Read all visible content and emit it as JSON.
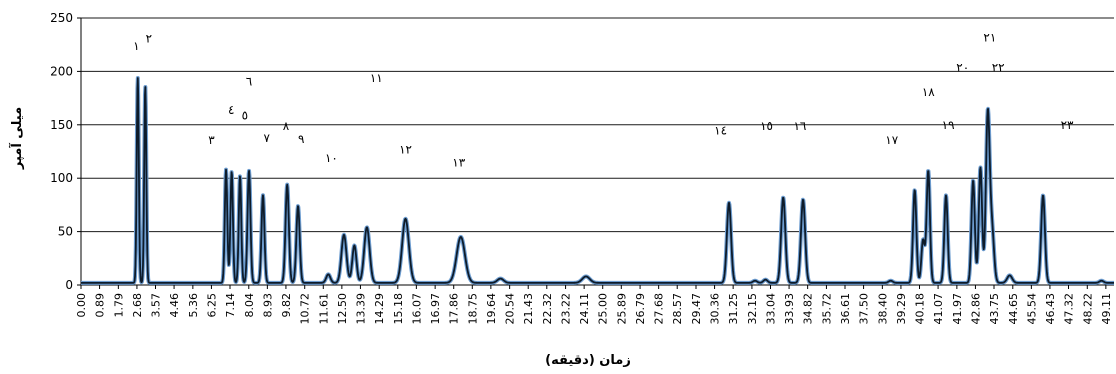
{
  "chart_data": {
    "type": "line",
    "title": "",
    "xlabel": "زمان (دقیقه)",
    "ylabel": "میلی آمپر",
    "xlim": [
      0,
      49.5
    ],
    "ylim": [
      0,
      250
    ],
    "grid": true,
    "yticks": [
      0,
      50,
      100,
      150,
      200,
      250
    ],
    "xticks": [
      "0.00",
      "0.89",
      "1.79",
      "2.68",
      "3.57",
      "4.46",
      "5.36",
      "6.25",
      "7.14",
      "8.04",
      "8.93",
      "9.82",
      "10.72",
      "11.61",
      "12.50",
      "13.39",
      "14.29",
      "15.18",
      "16.07",
      "16.97",
      "17.86",
      "18.75",
      "19.64",
      "20.54",
      "21.43",
      "22.32",
      "23.22",
      "24.11",
      "25.00",
      "25.89",
      "26.79",
      "27.68",
      "28.57",
      "29.47",
      "30.36",
      "31.25",
      "32.15",
      "33.04",
      "33.93",
      "34.82",
      "35.72",
      "36.61",
      "37.50",
      "38.40",
      "39.29",
      "40.18",
      "41.07",
      "41.97",
      "42.86",
      "43.75",
      "44.65",
      "45.54",
      "46.43",
      "47.32",
      "48.22",
      "49.11"
    ],
    "peaks": [
      {
        "label": "١",
        "t": 2.72,
        "height": 192,
        "width": 0.05
      },
      {
        "label": "٢",
        "t": 3.08,
        "height": 184,
        "width": 0.05
      },
      {
        "label": "٣",
        "t": 6.95,
        "height": 106,
        "width": 0.06
      },
      {
        "label": "٤",
        "t": 7.22,
        "height": 104,
        "width": 0.06
      },
      {
        "label": "٥",
        "t": 7.62,
        "height": 100,
        "width": 0.06
      },
      {
        "label": "٦",
        "t": 8.05,
        "height": 105,
        "width": 0.07
      },
      {
        "label": "٧",
        "t": 8.72,
        "height": 82,
        "width": 0.07
      },
      {
        "label": "٨",
        "t": 9.88,
        "height": 92,
        "width": 0.08
      },
      {
        "label": "٩",
        "t": 10.4,
        "height": 72,
        "width": 0.08
      },
      {
        "label": "١٠",
        "t": 11.85,
        "height": 8,
        "width": 0.1
      },
      {
        "label": "١١",
        "t": 12.6,
        "height": 45,
        "width": 0.12
      },
      {
        "label": "١١",
        "t": 13.1,
        "height": 35,
        "width": 0.1
      },
      {
        "label": "١١",
        "t": 13.7,
        "height": 52,
        "width": 0.13
      },
      {
        "label": "١٢",
        "t": 15.55,
        "height": 60,
        "width": 0.16
      },
      {
        "label": "١٣",
        "t": 18.2,
        "height": 43,
        "width": 0.2
      },
      {
        "label": "",
        "t": 20.1,
        "height": 4,
        "width": 0.15
      },
      {
        "label": "",
        "t": 24.2,
        "height": 6,
        "width": 0.18
      },
      {
        "label": "١٤",
        "t": 31.05,
        "height": 75,
        "width": 0.1
      },
      {
        "label": "",
        "t": 32.3,
        "height": 2,
        "width": 0.1
      },
      {
        "label": "",
        "t": 32.8,
        "height": 3,
        "width": 0.1
      },
      {
        "label": "١٥",
        "t": 33.65,
        "height": 80,
        "width": 0.1
      },
      {
        "label": "١٦",
        "t": 34.6,
        "height": 78,
        "width": 0.1
      },
      {
        "label": "١٧",
        "t": 38.8,
        "height": 2,
        "width": 0.1
      },
      {
        "label": "١٨",
        "t": 39.95,
        "height": 87,
        "width": 0.08
      },
      {
        "label": "",
        "t": 40.35,
        "height": 40,
        "width": 0.08
      },
      {
        "label": "",
        "t": 40.6,
        "height": 105,
        "width": 0.08
      },
      {
        "label": "١٩",
        "t": 41.45,
        "height": 82,
        "width": 0.08
      },
      {
        "label": "٢٠",
        "t": 42.75,
        "height": 96,
        "width": 0.08
      },
      {
        "label": "٢١",
        "t": 43.1,
        "height": 108,
        "width": 0.08
      },
      {
        "label": "٢٢",
        "t": 43.45,
        "height": 156,
        "width": 0.09
      },
      {
        "label": "",
        "t": 43.65,
        "height": 50,
        "width": 0.1
      },
      {
        "label": "",
        "t": 44.5,
        "height": 7,
        "width": 0.12
      },
      {
        "label": "٢٣",
        "t": 46.1,
        "height": 82,
        "width": 0.09
      },
      {
        "label": "",
        "t": 48.9,
        "height": 2,
        "width": 0.1
      }
    ],
    "peak_labels": [
      {
        "text": "١",
        "t": 2.65,
        "y": 220
      },
      {
        "text": "٢",
        "t": 3.25,
        "y": 227
      },
      {
        "text": "٣",
        "t": 6.25,
        "y": 132
      },
      {
        "text": "٤",
        "t": 7.2,
        "y": 160
      },
      {
        "text": "٥",
        "t": 7.85,
        "y": 155
      },
      {
        "text": "٦",
        "t": 8.05,
        "y": 187
      },
      {
        "text": "٧",
        "t": 8.9,
        "y": 134
      },
      {
        "text": "٨",
        "t": 9.82,
        "y": 145
      },
      {
        "text": "٩",
        "t": 10.55,
        "y": 133
      },
      {
        "text": "١٠",
        "t": 12.0,
        "y": 115
      },
      {
        "text": "١١",
        "t": 14.15,
        "y": 190
      },
      {
        "text": "١٢",
        "t": 15.55,
        "y": 123
      },
      {
        "text": "١٣",
        "t": 18.1,
        "y": 111
      },
      {
        "text": "١٤",
        "t": 30.65,
        "y": 141
      },
      {
        "text": "١٥",
        "t": 32.85,
        "y": 145
      },
      {
        "text": "١٦",
        "t": 34.45,
        "y": 145
      },
      {
        "text": "١٧",
        "t": 38.85,
        "y": 132
      },
      {
        "text": "١٨",
        "t": 40.6,
        "y": 177
      },
      {
        "text": "١٩",
        "t": 41.55,
        "y": 146
      },
      {
        "text": "٢٠",
        "t": 42.25,
        "y": 200
      },
      {
        "text": "٢١",
        "t": 43.55,
        "y": 228
      },
      {
        "text": "٢٢",
        "t": 43.95,
        "y": 200
      },
      {
        "text": "٢٣",
        "t": 47.25,
        "y": 146
      }
    ]
  }
}
